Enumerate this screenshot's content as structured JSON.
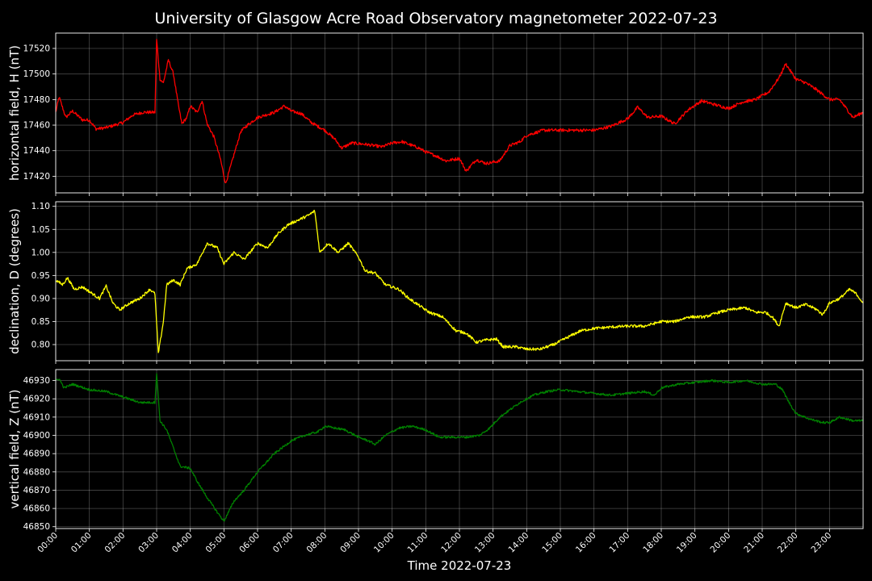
{
  "chart_data": {
    "type": "line",
    "title": "University of Glasgow Acre Road Observatory magnetometer 2022-07-23",
    "xlabel": "Time 2022-07-23",
    "x_range_hours": [
      0,
      24
    ],
    "x_tick_labels": [
      "00:00",
      "01:00",
      "02:00",
      "03:00",
      "04:00",
      "05:00",
      "06:00",
      "07:00",
      "08:00",
      "09:00",
      "10:00",
      "11:00",
      "12:00",
      "13:00",
      "14:00",
      "15:00",
      "16:00",
      "17:00",
      "18:00",
      "19:00",
      "20:00",
      "21:00",
      "22:00",
      "23:00"
    ],
    "grid": true,
    "panels": [
      {
        "name": "horizontal",
        "ylabel": "horizontal field, H (nT)",
        "color": "#ff0000",
        "ylim": [
          17407,
          17532
        ],
        "yticks": [
          17420,
          17440,
          17460,
          17480,
          17500,
          17520
        ],
        "tick_decimals": 0,
        "noise": 1.2,
        "points": [
          [
            0,
            17470
          ],
          [
            0.1,
            17482
          ],
          [
            0.3,
            17466
          ],
          [
            0.5,
            17471
          ],
          [
            0.8,
            17464
          ],
          [
            1.0,
            17464
          ],
          [
            1.2,
            17457
          ],
          [
            1.5,
            17458
          ],
          [
            2.0,
            17462
          ],
          [
            2.3,
            17468
          ],
          [
            2.6,
            17470
          ],
          [
            2.95,
            17470
          ],
          [
            3.0,
            17527
          ],
          [
            3.1,
            17496
          ],
          [
            3.2,
            17493
          ],
          [
            3.35,
            17511
          ],
          [
            3.5,
            17500
          ],
          [
            3.65,
            17475
          ],
          [
            3.75,
            17461
          ],
          [
            3.9,
            17466
          ],
          [
            4.0,
            17475
          ],
          [
            4.2,
            17470
          ],
          [
            4.35,
            17479
          ],
          [
            4.5,
            17461
          ],
          [
            4.7,
            17451
          ],
          [
            4.9,
            17433
          ],
          [
            5.05,
            17414
          ],
          [
            5.3,
            17437
          ],
          [
            5.5,
            17455
          ],
          [
            5.7,
            17460
          ],
          [
            6.0,
            17466
          ],
          [
            6.5,
            17470
          ],
          [
            6.8,
            17475
          ],
          [
            7.0,
            17471
          ],
          [
            7.3,
            17469
          ],
          [
            7.6,
            17462
          ],
          [
            8.0,
            17456
          ],
          [
            8.3,
            17449
          ],
          [
            8.5,
            17442
          ],
          [
            8.8,
            17446
          ],
          [
            9.2,
            17445
          ],
          [
            9.7,
            17443
          ],
          [
            10.0,
            17446
          ],
          [
            10.3,
            17447
          ],
          [
            10.8,
            17442
          ],
          [
            11.0,
            17439
          ],
          [
            11.3,
            17436
          ],
          [
            11.6,
            17432
          ],
          [
            12.0,
            17434
          ],
          [
            12.2,
            17424
          ],
          [
            12.5,
            17433
          ],
          [
            12.8,
            17430
          ],
          [
            13.2,
            17432
          ],
          [
            13.5,
            17444
          ],
          [
            13.8,
            17447
          ],
          [
            14.0,
            17452
          ],
          [
            14.5,
            17456
          ],
          [
            15.0,
            17456
          ],
          [
            15.5,
            17456
          ],
          [
            16.0,
            17456
          ],
          [
            16.5,
            17459
          ],
          [
            17.0,
            17465
          ],
          [
            17.3,
            17474
          ],
          [
            17.6,
            17466
          ],
          [
            18.0,
            17467
          ],
          [
            18.4,
            17461
          ],
          [
            18.8,
            17472
          ],
          [
            19.2,
            17479
          ],
          [
            19.6,
            17476
          ],
          [
            20.0,
            17473
          ],
          [
            20.4,
            17478
          ],
          [
            20.8,
            17480
          ],
          [
            21.2,
            17486
          ],
          [
            21.5,
            17497
          ],
          [
            21.7,
            17508
          ],
          [
            22.0,
            17496
          ],
          [
            22.3,
            17493
          ],
          [
            22.6,
            17488
          ],
          [
            23.0,
            17480
          ],
          [
            23.3,
            17480
          ],
          [
            23.7,
            17466
          ],
          [
            24.0,
            17470
          ]
        ]
      },
      {
        "name": "declination",
        "ylabel": "declination, D (degrees)",
        "color": "#ffff00",
        "ylim": [
          0.765,
          1.11
        ],
        "yticks": [
          0.8,
          0.85,
          0.9,
          0.95,
          1.0,
          1.05,
          1.1
        ],
        "tick_decimals": 2,
        "noise": 0.003,
        "points": [
          [
            0,
            0.94
          ],
          [
            0.2,
            0.93
          ],
          [
            0.35,
            0.945
          ],
          [
            0.55,
            0.92
          ],
          [
            0.8,
            0.925
          ],
          [
            1.0,
            0.915
          ],
          [
            1.3,
            0.9
          ],
          [
            1.5,
            0.927
          ],
          [
            1.7,
            0.89
          ],
          [
            1.9,
            0.875
          ],
          [
            2.2,
            0.89
          ],
          [
            2.5,
            0.9
          ],
          [
            2.8,
            0.92
          ],
          [
            2.95,
            0.91
          ],
          [
            3.05,
            0.78
          ],
          [
            3.2,
            0.85
          ],
          [
            3.3,
            0.93
          ],
          [
            3.5,
            0.94
          ],
          [
            3.7,
            0.93
          ],
          [
            3.9,
            0.965
          ],
          [
            4.2,
            0.975
          ],
          [
            4.5,
            1.02
          ],
          [
            4.8,
            1.01
          ],
          [
            5.0,
            0.975
          ],
          [
            5.3,
            1.0
          ],
          [
            5.6,
            0.985
          ],
          [
            6.0,
            1.02
          ],
          [
            6.3,
            1.01
          ],
          [
            6.6,
            1.04
          ],
          [
            6.9,
            1.06
          ],
          [
            7.2,
            1.07
          ],
          [
            7.5,
            1.08
          ],
          [
            7.7,
            1.09
          ],
          [
            7.85,
            1.0
          ],
          [
            8.1,
            1.02
          ],
          [
            8.4,
            1.0
          ],
          [
            8.7,
            1.02
          ],
          [
            9.0,
            0.99
          ],
          [
            9.2,
            0.96
          ],
          [
            9.5,
            0.955
          ],
          [
            9.8,
            0.93
          ],
          [
            10.2,
            0.92
          ],
          [
            10.5,
            0.9
          ],
          [
            10.8,
            0.885
          ],
          [
            11.1,
            0.87
          ],
          [
            11.5,
            0.86
          ],
          [
            11.9,
            0.83
          ],
          [
            12.2,
            0.825
          ],
          [
            12.5,
            0.805
          ],
          [
            12.8,
            0.81
          ],
          [
            13.1,
            0.812
          ],
          [
            13.3,
            0.795
          ],
          [
            13.7,
            0.795
          ],
          [
            14.0,
            0.79
          ],
          [
            14.4,
            0.79
          ],
          [
            14.8,
            0.8
          ],
          [
            15.2,
            0.815
          ],
          [
            15.6,
            0.83
          ],
          [
            16.0,
            0.835
          ],
          [
            16.5,
            0.838
          ],
          [
            17.0,
            0.84
          ],
          [
            17.5,
            0.84
          ],
          [
            18.0,
            0.85
          ],
          [
            18.4,
            0.85
          ],
          [
            18.8,
            0.86
          ],
          [
            19.3,
            0.86
          ],
          [
            19.7,
            0.87
          ],
          [
            20.0,
            0.875
          ],
          [
            20.5,
            0.88
          ],
          [
            20.8,
            0.87
          ],
          [
            21.1,
            0.87
          ],
          [
            21.3,
            0.86
          ],
          [
            21.5,
            0.84
          ],
          [
            21.7,
            0.89
          ],
          [
            22.0,
            0.88
          ],
          [
            22.3,
            0.887
          ],
          [
            22.6,
            0.877
          ],
          [
            22.8,
            0.865
          ],
          [
            23.0,
            0.89
          ],
          [
            23.3,
            0.9
          ],
          [
            23.6,
            0.92
          ],
          [
            23.8,
            0.91
          ],
          [
            24.0,
            0.89
          ]
        ]
      },
      {
        "name": "vertical",
        "ylabel": "vertical field, Z (nT)",
        "color": "#008000",
        "ylim": [
          46849,
          46936
        ],
        "yticks": [
          46850,
          46860,
          46870,
          46880,
          46890,
          46900,
          46910,
          46920,
          46930
        ],
        "tick_decimals": 0,
        "noise": 0.6,
        "points": [
          [
            0,
            46930
          ],
          [
            0.1,
            46931
          ],
          [
            0.25,
            46926
          ],
          [
            0.5,
            46928
          ],
          [
            1.0,
            46925
          ],
          [
            1.5,
            46924
          ],
          [
            2.0,
            46921
          ],
          [
            2.5,
            46918
          ],
          [
            2.95,
            46918
          ],
          [
            3.0,
            46934
          ],
          [
            3.1,
            46908
          ],
          [
            3.3,
            46903
          ],
          [
            3.5,
            46893
          ],
          [
            3.7,
            46883
          ],
          [
            4.0,
            46882
          ],
          [
            4.2,
            46875
          ],
          [
            4.5,
            46866
          ],
          [
            4.8,
            46858
          ],
          [
            5.0,
            46853
          ],
          [
            5.3,
            46864
          ],
          [
            5.6,
            46870
          ],
          [
            6.0,
            46880
          ],
          [
            6.5,
            46890
          ],
          [
            7.0,
            46897
          ],
          [
            7.4,
            46900
          ],
          [
            7.8,
            46902
          ],
          [
            8.0,
            46905
          ],
          [
            8.3,
            46904
          ],
          [
            8.6,
            46903
          ],
          [
            9.0,
            46899
          ],
          [
            9.3,
            46897
          ],
          [
            9.5,
            46895
          ],
          [
            9.8,
            46900
          ],
          [
            10.2,
            46904
          ],
          [
            10.6,
            46905
          ],
          [
            11.0,
            46903
          ],
          [
            11.4,
            46899
          ],
          [
            11.8,
            46899
          ],
          [
            12.2,
            46899
          ],
          [
            12.6,
            46900
          ],
          [
            12.9,
            46904
          ],
          [
            13.2,
            46910
          ],
          [
            13.5,
            46914
          ],
          [
            13.8,
            46918
          ],
          [
            14.2,
            46922
          ],
          [
            14.6,
            46924
          ],
          [
            15.0,
            46925
          ],
          [
            15.5,
            46924
          ],
          [
            16.0,
            46923
          ],
          [
            16.5,
            46922
          ],
          [
            17.0,
            46923
          ],
          [
            17.5,
            46924
          ],
          [
            17.8,
            46922
          ],
          [
            18.0,
            46926
          ],
          [
            18.5,
            46928
          ],
          [
            19.0,
            46929
          ],
          [
            19.5,
            46930
          ],
          [
            20.0,
            46929
          ],
          [
            20.5,
            46930
          ],
          [
            21.0,
            46928
          ],
          [
            21.4,
            46928
          ],
          [
            21.6,
            46925
          ],
          [
            21.8,
            46918
          ],
          [
            22.0,
            46912
          ],
          [
            22.4,
            46909
          ],
          [
            22.8,
            46907
          ],
          [
            23.0,
            46907
          ],
          [
            23.3,
            46910
          ],
          [
            23.7,
            46908
          ],
          [
            24.0,
            46908
          ]
        ]
      }
    ]
  }
}
